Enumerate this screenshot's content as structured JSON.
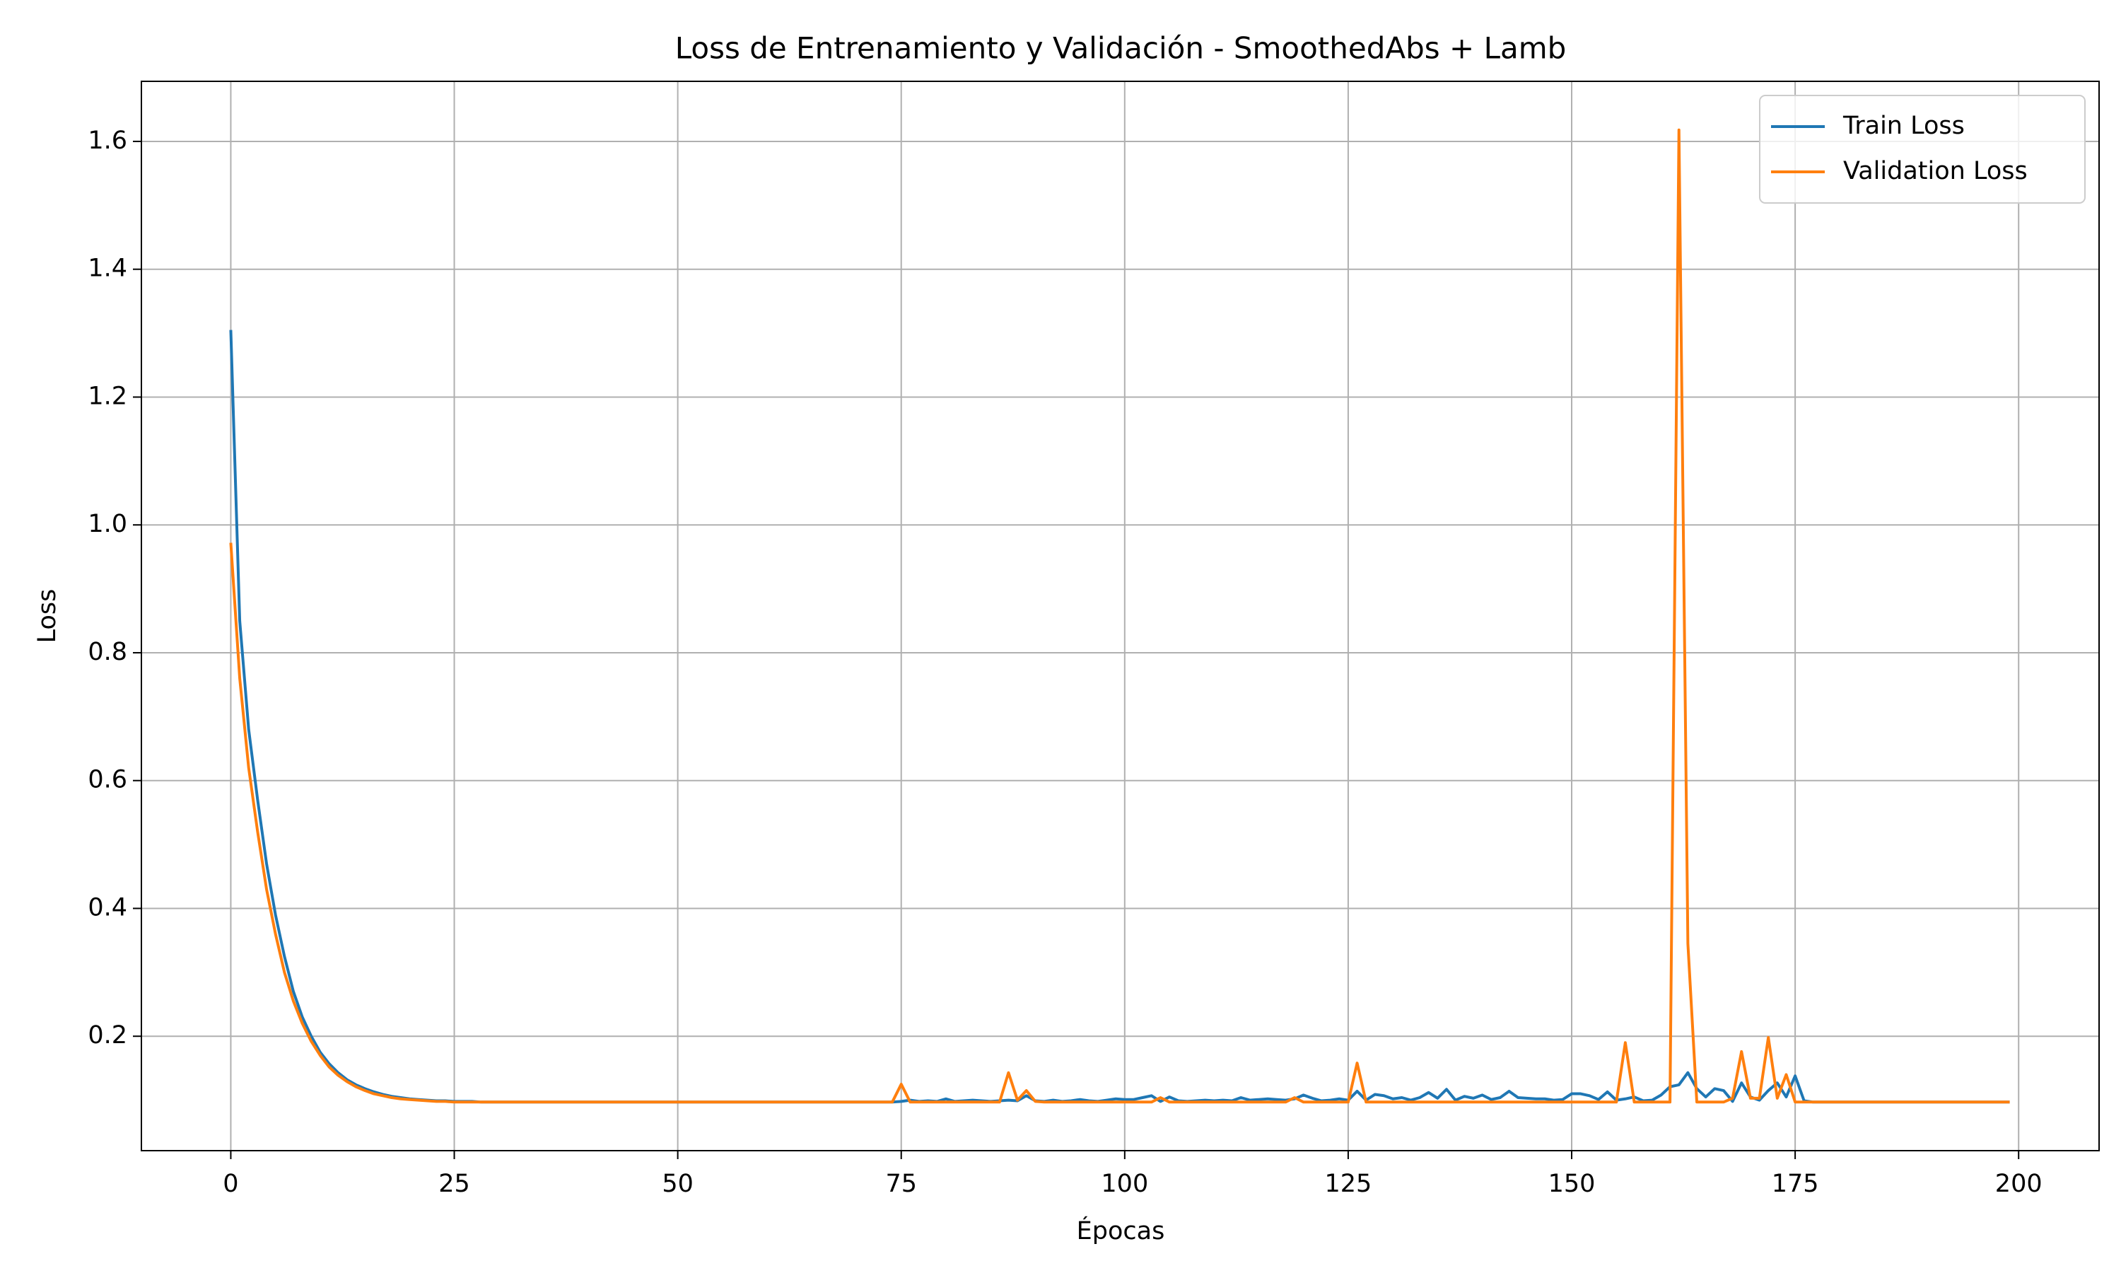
{
  "chart_data": {
    "type": "line",
    "title": "Loss de Entrenamiento y Validación - SmoothedAbs + Lamb",
    "x_label": "Épocas",
    "y_label": "Loss",
    "x": [
      0,
      1,
      2,
      3,
      4,
      5,
      6,
      7,
      8,
      9,
      10,
      11,
      12,
      13,
      14,
      15,
      16,
      17,
      18,
      19,
      20,
      21,
      22,
      23,
      24,
      25,
      26,
      27,
      28,
      29,
      30,
      31,
      32,
      33,
      34,
      35,
      36,
      37,
      38,
      39,
      40,
      41,
      42,
      43,
      44,
      45,
      46,
      47,
      48,
      49,
      50,
      51,
      52,
      53,
      54,
      55,
      56,
      57,
      58,
      59,
      60,
      61,
      62,
      63,
      64,
      65,
      66,
      67,
      68,
      69,
      70,
      71,
      72,
      73,
      74,
      75,
      76,
      77,
      78,
      79,
      80,
      81,
      82,
      83,
      84,
      85,
      86,
      87,
      88,
      89,
      90,
      91,
      92,
      93,
      94,
      95,
      96,
      97,
      98,
      99,
      100,
      101,
      102,
      103,
      104,
      105,
      106,
      107,
      108,
      109,
      110,
      111,
      112,
      113,
      114,
      115,
      116,
      117,
      118,
      119,
      120,
      121,
      122,
      123,
      124,
      125,
      126,
      127,
      128,
      129,
      130,
      131,
      132,
      133,
      134,
      135,
      136,
      137,
      138,
      139,
      140,
      141,
      142,
      143,
      144,
      145,
      146,
      147,
      148,
      149,
      150,
      151,
      152,
      153,
      154,
      155,
      156,
      157,
      158,
      159,
      160,
      161,
      162,
      163,
      164,
      165,
      166,
      167,
      168,
      169,
      170,
      171,
      172,
      173,
      174,
      175,
      176,
      177,
      178,
      179,
      180,
      181,
      182,
      183,
      184,
      185,
      186,
      187,
      188,
      189,
      190,
      191,
      192,
      193,
      194,
      195,
      196,
      197,
      198,
      199
    ],
    "series": [
      {
        "name": "Train Loss",
        "color": "#1f77b4",
        "values": [
          1.305,
          0.85,
          0.68,
          0.57,
          0.47,
          0.39,
          0.325,
          0.27,
          0.23,
          0.2,
          0.175,
          0.157,
          0.143,
          0.132,
          0.124,
          0.118,
          0.113,
          0.109,
          0.106,
          0.104,
          0.102,
          0.101,
          0.1,
          0.099,
          0.099,
          0.098,
          0.098,
          0.098,
          0.097,
          0.097,
          0.097,
          0.097,
          0.097,
          0.097,
          0.097,
          0.097,
          0.097,
          0.097,
          0.097,
          0.097,
          0.097,
          0.097,
          0.097,
          0.097,
          0.097,
          0.097,
          0.097,
          0.097,
          0.097,
          0.097,
          0.097,
          0.097,
          0.097,
          0.097,
          0.097,
          0.097,
          0.097,
          0.097,
          0.097,
          0.097,
          0.097,
          0.097,
          0.097,
          0.097,
          0.097,
          0.097,
          0.097,
          0.097,
          0.097,
          0.097,
          0.097,
          0.097,
          0.097,
          0.097,
          0.097,
          0.098,
          0.1,
          0.098,
          0.099,
          0.098,
          0.102,
          0.098,
          0.099,
          0.1,
          0.099,
          0.098,
          0.099,
          0.1,
          0.099,
          0.107,
          0.099,
          0.098,
          0.1,
          0.098,
          0.099,
          0.101,
          0.099,
          0.098,
          0.1,
          0.102,
          0.101,
          0.101,
          0.104,
          0.107,
          0.098,
          0.105,
          0.099,
          0.098,
          0.099,
          0.1,
          0.099,
          0.1,
          0.099,
          0.104,
          0.1,
          0.101,
          0.102,
          0.101,
          0.1,
          0.102,
          0.108,
          0.103,
          0.099,
          0.1,
          0.102,
          0.1,
          0.114,
          0.1,
          0.109,
          0.107,
          0.102,
          0.104,
          0.1,
          0.104,
          0.112,
          0.103,
          0.117,
          0.1,
          0.106,
          0.103,
          0.108,
          0.101,
          0.104,
          0.114,
          0.104,
          0.103,
          0.102,
          0.102,
          0.1,
          0.101,
          0.11,
          0.11,
          0.107,
          0.101,
          0.113,
          0.1,
          0.102,
          0.105,
          0.099,
          0.1,
          0.108,
          0.121,
          0.124,
          0.143,
          0.118,
          0.105,
          0.118,
          0.115,
          0.098,
          0.127,
          0.105,
          0.1,
          0.115,
          0.127,
          0.105,
          0.138,
          0.099,
          0.097,
          0.097,
          0.097,
          0.097,
          0.097,
          0.097,
          0.097,
          0.097,
          0.097,
          0.097,
          0.097,
          0.097,
          0.097,
          0.097,
          0.097,
          0.097,
          0.097,
          0.097,
          0.097,
          0.097,
          0.097,
          0.097,
          0.097
        ]
      },
      {
        "name": "Validation Loss",
        "color": "#ff7f0e",
        "values": [
          0.972,
          0.76,
          0.62,
          0.52,
          0.43,
          0.36,
          0.3,
          0.255,
          0.22,
          0.192,
          0.17,
          0.152,
          0.139,
          0.129,
          0.121,
          0.115,
          0.11,
          0.107,
          0.104,
          0.102,
          0.101,
          0.1,
          0.099,
          0.098,
          0.098,
          0.097,
          0.097,
          0.097,
          0.097,
          0.097,
          0.097,
          0.097,
          0.097,
          0.097,
          0.097,
          0.097,
          0.097,
          0.097,
          0.097,
          0.097,
          0.097,
          0.097,
          0.097,
          0.097,
          0.097,
          0.097,
          0.097,
          0.097,
          0.097,
          0.097,
          0.097,
          0.097,
          0.097,
          0.097,
          0.097,
          0.097,
          0.097,
          0.097,
          0.097,
          0.097,
          0.097,
          0.097,
          0.097,
          0.097,
          0.097,
          0.097,
          0.097,
          0.097,
          0.097,
          0.097,
          0.097,
          0.097,
          0.097,
          0.097,
          0.097,
          0.125,
          0.097,
          0.097,
          0.097,
          0.097,
          0.097,
          0.097,
          0.097,
          0.097,
          0.097,
          0.097,
          0.097,
          0.143,
          0.1,
          0.115,
          0.098,
          0.097,
          0.097,
          0.097,
          0.097,
          0.097,
          0.097,
          0.097,
          0.097,
          0.097,
          0.097,
          0.097,
          0.097,
          0.097,
          0.104,
          0.097,
          0.097,
          0.097,
          0.097,
          0.097,
          0.097,
          0.097,
          0.097,
          0.097,
          0.097,
          0.097,
          0.097,
          0.097,
          0.097,
          0.104,
          0.097,
          0.097,
          0.097,
          0.097,
          0.097,
          0.097,
          0.158,
          0.097,
          0.097,
          0.097,
          0.097,
          0.097,
          0.097,
          0.097,
          0.097,
          0.097,
          0.097,
          0.097,
          0.097,
          0.097,
          0.097,
          0.097,
          0.097,
          0.097,
          0.097,
          0.097,
          0.097,
          0.097,
          0.097,
          0.097,
          0.097,
          0.097,
          0.097,
          0.097,
          0.097,
          0.097,
          0.19,
          0.097,
          0.097,
          0.097,
          0.097,
          0.097,
          1.618,
          0.345,
          0.097,
          0.097,
          0.097,
          0.097,
          0.103,
          0.176,
          0.103,
          0.103,
          0.198,
          0.103,
          0.14,
          0.097,
          0.097,
          0.097,
          0.097,
          0.097,
          0.097,
          0.097,
          0.097,
          0.097,
          0.097,
          0.097,
          0.097,
          0.097,
          0.097,
          0.097,
          0.097,
          0.097,
          0.097,
          0.097,
          0.097,
          0.097,
          0.097,
          0.097,
          0.097,
          0.097
        ]
      }
    ],
    "xlim": [
      -10,
      209
    ],
    "ylim": [
      0.021,
      1.694
    ],
    "xticks": [
      0,
      25,
      50,
      75,
      100,
      125,
      150,
      175,
      200
    ],
    "yticks": [
      0.2,
      0.4,
      0.6,
      0.8,
      1.0,
      1.2,
      1.4,
      1.6
    ],
    "grid": true,
    "legend": "upper right"
  }
}
